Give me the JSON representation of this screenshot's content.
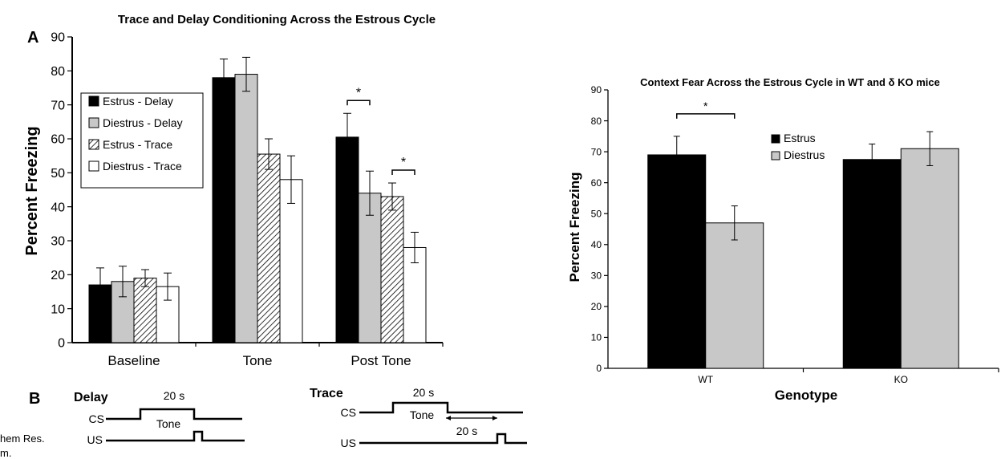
{
  "chart_data": [
    {
      "type": "bar",
      "panel_label": "A",
      "title": "Trace and Delay Conditioning Across the Estrous Cycle",
      "xlabel": "",
      "ylabel": "Percent Freezing",
      "ylim": [
        0,
        90
      ],
      "yticks": [
        0,
        10,
        20,
        30,
        40,
        50,
        60,
        70,
        80,
        90
      ],
      "grid": false,
      "legend_position": "top-left",
      "categories": [
        "Baseline",
        "Tone",
        "Post Tone"
      ],
      "series": [
        {
          "name": "Estrus - Delay",
          "fill": "#000000",
          "pattern": "solid",
          "values": [
            17,
            78,
            60.5
          ],
          "errors": [
            5,
            5.5,
            7
          ]
        },
        {
          "name": "Diestrus - Delay",
          "fill": "#c8c8c8",
          "pattern": "solid",
          "values": [
            18,
            79,
            44
          ],
          "errors": [
            4.5,
            5,
            6.5
          ]
        },
        {
          "name": "Estrus - Trace",
          "fill": "#ffffff",
          "pattern": "hatch",
          "values": [
            19,
            55.5,
            43
          ],
          "errors": [
            2.5,
            4.5,
            4
          ]
        },
        {
          "name": "Diestrus - Trace",
          "fill": "#ffffff",
          "pattern": "solid",
          "values": [
            16.5,
            48,
            28
          ],
          "errors": [
            4,
            7,
            4.5
          ]
        }
      ],
      "annotations": [
        {
          "text": "*",
          "between_series": [
            0,
            1
          ],
          "category": "Post Tone"
        },
        {
          "text": "*",
          "between_series": [
            2,
            3
          ],
          "category": "Post Tone"
        }
      ]
    },
    {
      "type": "bar",
      "title": "Context Fear Across the Estrous Cycle in WT and δ KO mice",
      "xlabel": "Genotype",
      "ylabel": "Percent Freezing",
      "ylim": [
        0,
        90
      ],
      "yticks": [
        0,
        10,
        20,
        30,
        40,
        50,
        60,
        70,
        80,
        90
      ],
      "grid": false,
      "legend_position": "top-center",
      "categories": [
        "WT",
        "KO"
      ],
      "series": [
        {
          "name": "Estrus",
          "fill": "#000000",
          "values": [
            69,
            67.5
          ],
          "errors": [
            6,
            5
          ]
        },
        {
          "name": "Diestrus",
          "fill": "#c8c8c8",
          "values": [
            47,
            71
          ],
          "errors": [
            5.5,
            5.5
          ]
        }
      ],
      "annotations": [
        {
          "text": "*",
          "between_series": [
            0,
            1
          ],
          "category": "WT"
        }
      ]
    }
  ],
  "protocol": {
    "panel_label": "B",
    "delay": {
      "title": "Delay",
      "duration_label": "20 s",
      "cs_label": "CS",
      "us_label": "US",
      "tone_label": "Tone"
    },
    "trace": {
      "title": "Trace",
      "duration_label": "20 s",
      "cs_label": "CS",
      "us_label": "US",
      "tone_label": "Tone",
      "trace_label": "20 s"
    }
  },
  "citation": {
    "line1": "hem Res.",
    "line2": "m."
  }
}
